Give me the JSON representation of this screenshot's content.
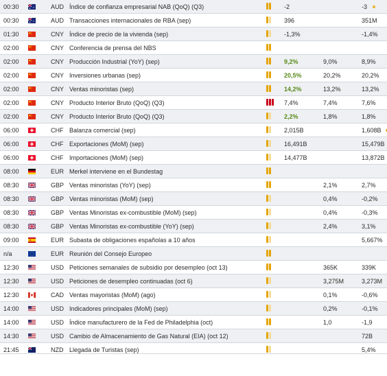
{
  "colors": {
    "accent_good": "#5a8a1a",
    "importance": "#e5a400",
    "importance_high": "#c8001a"
  },
  "rows": [
    {
      "time": "00:30",
      "flag": "flag-australia-icon",
      "currency": "AUD",
      "event": "Índice de confianza empresarial NAB (QoQ) (Q3)",
      "importance": 2,
      "actual": "-2",
      "forecast": "",
      "previous": "-3",
      "prev_revised": true,
      "actual_good": false
    },
    {
      "time": "00:30",
      "flag": "flag-australia-icon",
      "currency": "AUD",
      "event": "Transacciones internacionales de RBA (sep)",
      "importance": 1,
      "actual": "396",
      "forecast": "",
      "previous": "351M",
      "prev_revised": false,
      "actual_good": false
    },
    {
      "time": "01:30",
      "flag": "flag-china-icon",
      "currency": "CNY",
      "event": "Índice de precio de la vivienda (sep)",
      "importance": 1,
      "actual": "-1,3%",
      "forecast": "",
      "previous": "-1,4%",
      "prev_revised": false,
      "actual_good": false
    },
    {
      "time": "02:00",
      "flag": "flag-china-icon",
      "currency": "CNY",
      "event": "Conferencia de prensa del NBS",
      "importance": 2,
      "actual": "",
      "forecast": "",
      "previous": "",
      "prev_revised": false,
      "actual_good": false
    },
    {
      "time": "02:00",
      "flag": "flag-china-icon",
      "currency": "CNY",
      "event": "Producción Industrial (YoY) (sep)",
      "importance": 2,
      "actual": "9,2%",
      "forecast": "9,0%",
      "previous": "8,9%",
      "prev_revised": false,
      "actual_good": true
    },
    {
      "time": "02:00",
      "flag": "flag-china-icon",
      "currency": "CNY",
      "event": "Inversiones urbanas (sep)",
      "importance": 2,
      "actual": "20,5%",
      "forecast": "20,2%",
      "previous": "20,2%",
      "prev_revised": false,
      "actual_good": true
    },
    {
      "time": "02:00",
      "flag": "flag-china-icon",
      "currency": "CNY",
      "event": "Ventas minoristas (sep)",
      "importance": 2,
      "actual": "14,2%",
      "forecast": "13,2%",
      "previous": "13,2%",
      "prev_revised": false,
      "actual_good": true
    },
    {
      "time": "02:00",
      "flag": "flag-china-icon",
      "currency": "CNY",
      "event": "Producto Interior Bruto (QoQ) (Q3)",
      "importance": 3,
      "actual": "7,4%",
      "forecast": "7,4%",
      "previous": "7,6%",
      "prev_revised": false,
      "actual_good": false
    },
    {
      "time": "02:00",
      "flag": "flag-china-icon",
      "currency": "CNY",
      "event": "Producto Interior Bruto (QoQ) (Q3)",
      "importance": 1,
      "actual": "2,2%",
      "forecast": "1,8%",
      "previous": "1,8%",
      "prev_revised": false,
      "actual_good": true
    },
    {
      "time": "06:00",
      "flag": "flag-switzerland-icon",
      "currency": "CHF",
      "event": "Balanza comercial (sep)",
      "importance": 1,
      "actual": "2,015B",
      "forecast": "",
      "previous": "1,608B",
      "prev_revised": true,
      "actual_good": false
    },
    {
      "time": "06:00",
      "flag": "flag-switzerland-icon",
      "currency": "CHF",
      "event": "Exportaciones (MoM) (sep)",
      "importance": 1,
      "actual": "16,491B",
      "forecast": "",
      "previous": "15,479B",
      "prev_revised": false,
      "actual_good": false
    },
    {
      "time": "06:00",
      "flag": "flag-switzerland-icon",
      "currency": "CHF",
      "event": "Importaciones (MoM) (sep)",
      "importance": 1,
      "actual": "14,477B",
      "forecast": "",
      "previous": "13,872B",
      "prev_revised": false,
      "actual_good": false
    },
    {
      "time": "08:00",
      "flag": "flag-germany-icon",
      "currency": "EUR",
      "event": "Merkel interviene en el Bundestag",
      "importance": 2,
      "actual": "",
      "forecast": "",
      "previous": "",
      "prev_revised": false,
      "actual_good": false
    },
    {
      "time": "08:30",
      "flag": "flag-uk-icon",
      "currency": "GBP",
      "event": "Ventas minoristas (YoY) (sep)",
      "importance": 2,
      "actual": "",
      "forecast": "2,1%",
      "previous": "2,7%",
      "prev_revised": false,
      "actual_good": false
    },
    {
      "time": "08:30",
      "flag": "flag-uk-icon",
      "currency": "GBP",
      "event": "Ventas minoristas (MoM) (sep)",
      "importance": 1,
      "actual": "",
      "forecast": "0,4%",
      "previous": "-0,2%",
      "prev_revised": false,
      "actual_good": false
    },
    {
      "time": "08:30",
      "flag": "flag-uk-icon",
      "currency": "GBP",
      "event": "Ventas Minoristas ex-combustible (MoM) (sep)",
      "importance": 1,
      "actual": "",
      "forecast": "0,4%",
      "previous": "-0,3%",
      "prev_revised": false,
      "actual_good": false
    },
    {
      "time": "08:30",
      "flag": "flag-uk-icon",
      "currency": "GBP",
      "event": "Ventas Minoristas ex-combustible (YoY) (sep)",
      "importance": 1,
      "actual": "",
      "forecast": "2,4%",
      "previous": "3,1%",
      "prev_revised": false,
      "actual_good": false
    },
    {
      "time": "09:00",
      "flag": "flag-spain-icon",
      "currency": "EUR",
      "event": "Subasta de obligaciones españolas a 10 años",
      "importance": 1,
      "actual": "",
      "forecast": "",
      "previous": "5,667%",
      "prev_revised": false,
      "actual_good": false
    },
    {
      "time": "n/a",
      "flag": "flag-eu-icon",
      "currency": "EUR",
      "event": "Reunión del Consejo Europeo",
      "importance": 2,
      "actual": "",
      "forecast": "",
      "previous": "",
      "prev_revised": false,
      "actual_good": false
    },
    {
      "time": "12:30",
      "flag": "flag-usa-icon",
      "currency": "USD",
      "event": "Peticiones semanales de subsidio por desempleo (oct 13)",
      "importance": 2,
      "actual": "",
      "forecast": "365K",
      "previous": "339K",
      "prev_revised": false,
      "actual_good": false
    },
    {
      "time": "12:30",
      "flag": "flag-usa-icon",
      "currency": "USD",
      "event": "Peticiones de desempleo continuadas (oct 6)",
      "importance": 1,
      "actual": "",
      "forecast": "3,275M",
      "previous": "3,273M",
      "prev_revised": false,
      "actual_good": false
    },
    {
      "time": "12:30",
      "flag": "flag-canada-icon",
      "currency": "CAD",
      "event": "Ventas mayoristas (MoM) (ago)",
      "importance": 1,
      "actual": "",
      "forecast": "0,1%",
      "previous": "-0,6%",
      "prev_revised": false,
      "actual_good": false
    },
    {
      "time": "14:00",
      "flag": "flag-usa-icon",
      "currency": "USD",
      "event": "Indicadores principales (MoM) (sep)",
      "importance": 1,
      "actual": "",
      "forecast": "0,2%",
      "previous": "-0,1%",
      "prev_revised": false,
      "actual_good": false
    },
    {
      "time": "14:00",
      "flag": "flag-usa-icon",
      "currency": "USD",
      "event": "Índice manufacturero de la Fed de Philadelphia (oct)",
      "importance": 2,
      "actual": "",
      "forecast": "1,0",
      "previous": "-1,9",
      "prev_revised": false,
      "actual_good": false
    },
    {
      "time": "14:30",
      "flag": "flag-usa-icon",
      "currency": "USD",
      "event": "Cambio de Almacenamiento de Gas Natural (EIA) (oct 12)",
      "importance": 1,
      "actual": "",
      "forecast": "",
      "previous": "72B",
      "prev_revised": false,
      "actual_good": false
    },
    {
      "time": "21:45",
      "flag": "flag-new-zealand-icon",
      "currency": "NZD",
      "event": "Llegada de Turistas (sep)",
      "importance": 1,
      "actual": "",
      "forecast": "",
      "previous": "5,4%",
      "prev_revised": false,
      "actual_good": false
    }
  ]
}
